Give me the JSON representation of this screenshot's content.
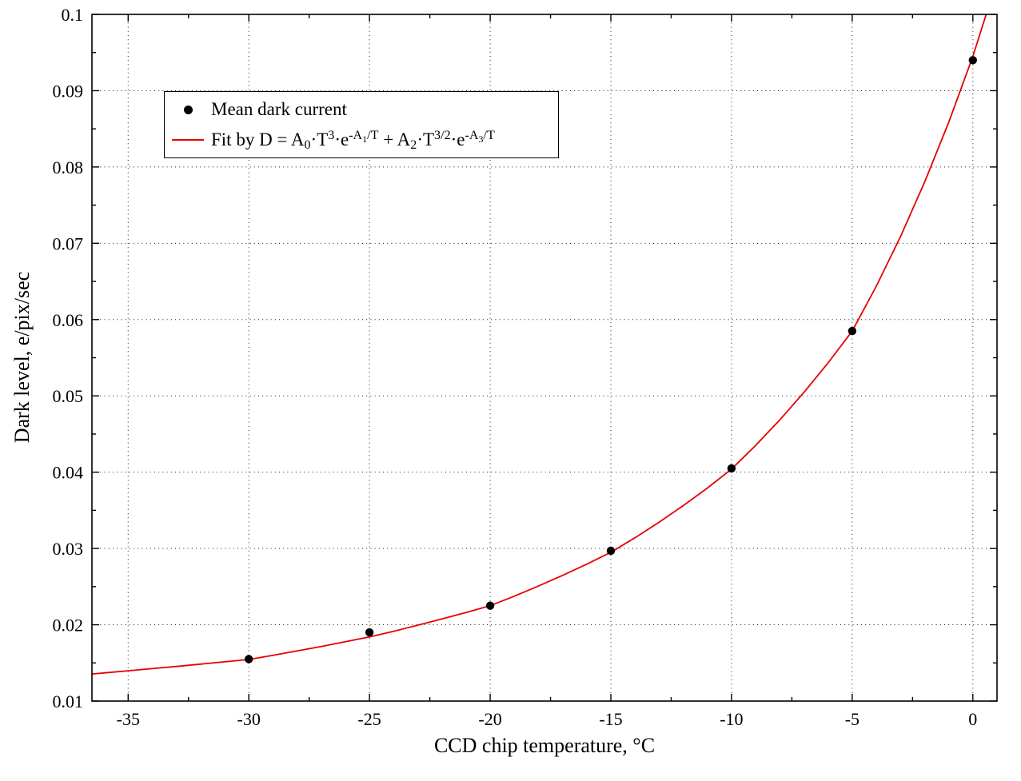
{
  "chart_data": {
    "type": "scatter",
    "title": "",
    "xlabel": "CCD chip temperature, °C",
    "ylabel": "Dark level, e/pix/sec",
    "xlim": [
      -36.5,
      1.0
    ],
    "ylim": [
      0.01,
      0.1
    ],
    "grid": {
      "show": true,
      "style": "dotted"
    },
    "x_ticks": {
      "values": [
        -35,
        -30,
        -25,
        -20,
        -15,
        -10,
        -5,
        0
      ],
      "labels": [
        "-35",
        "-30",
        "-25",
        "-20",
        "-15",
        "-10",
        "-5",
        "0"
      ],
      "minor_values": [
        -32.5,
        -27.5,
        -22.5,
        -17.5,
        -12.5,
        -7.5,
        -2.5
      ]
    },
    "y_ticks": {
      "values": [
        0.01,
        0.02,
        0.03,
        0.04,
        0.05,
        0.06,
        0.07,
        0.08,
        0.09,
        0.1
      ],
      "labels": [
        "0.01",
        "0.02",
        "0.03",
        "0.04",
        "0.05",
        "0.06",
        "0.07",
        "0.08",
        "0.09",
        "0.1"
      ],
      "minor_values": [
        0.015,
        0.025,
        0.035,
        0.045,
        0.055,
        0.065,
        0.075,
        0.085,
        0.095
      ]
    },
    "legend": {
      "position": "upper-left",
      "entries": [
        {
          "label": "Mean dark current",
          "marker": "filled-circle",
          "color": "#000000"
        },
        {
          "label_plain": "Fit by D = A0·T^3·e^(-A1/T) + A2·T^(3/2)·e^(-A3/T)",
          "marker": "line",
          "color": "#e60000",
          "label_tokens": [
            {
              "text": "Fit by D = A",
              "style": "normal"
            },
            {
              "text": "0",
              "style": "sub"
            },
            {
              "text": "·T",
              "style": "normal"
            },
            {
              "text": "3",
              "style": "sup"
            },
            {
              "text": "·e",
              "style": "normal"
            },
            {
              "text": "-A",
              "style": "sup"
            },
            {
              "text": "1",
              "style": "sup-sub"
            },
            {
              "text": "/T",
              "style": "sup"
            },
            {
              "text": " + A",
              "style": "normal"
            },
            {
              "text": "2",
              "style": "sub"
            },
            {
              "text": "·T",
              "style": "normal"
            },
            {
              "text": "3/2",
              "style": "sup"
            },
            {
              "text": "·e",
              "style": "normal"
            },
            {
              "text": "-A",
              "style": "sup"
            },
            {
              "text": "3",
              "style": "sup-sub"
            },
            {
              "text": "/T",
              "style": "sup"
            }
          ]
        }
      ]
    },
    "series": [
      {
        "name": "Mean dark current",
        "type": "scatter",
        "marker": "filled-circle",
        "color": "#000000",
        "x": [
          -30,
          -25,
          -20,
          -15,
          -10,
          -5,
          0
        ],
        "y": [
          0.0155,
          0.019,
          0.0225,
          0.0297,
          0.0405,
          0.0585,
          0.094
        ]
      },
      {
        "name": "Fit curve",
        "type": "line",
        "color": "#e60000",
        "x": [
          -36.5,
          -36,
          -35,
          -34,
          -33,
          -32,
          -31,
          -30,
          -29,
          -28,
          -27,
          -26,
          -25,
          -24,
          -23,
          -22,
          -21,
          -20,
          -19,
          -18,
          -17,
          -16,
          -15,
          -14,
          -13,
          -12,
          -11,
          -10,
          -9,
          -8,
          -7,
          -6,
          -5,
          -4,
          -3,
          -2,
          -1,
          0,
          0.5,
          1
        ],
        "y": [
          0.01355,
          0.01369,
          0.01397,
          0.01425,
          0.01454,
          0.01484,
          0.01514,
          0.01545,
          0.016,
          0.01657,
          0.01716,
          0.01777,
          0.0184,
          0.01915,
          0.01994,
          0.02076,
          0.02161,
          0.0225,
          0.02375,
          0.02508,
          0.02647,
          0.02794,
          0.0295,
          0.03141,
          0.03345,
          0.03562,
          0.03792,
          0.0404,
          0.0435,
          0.04685,
          0.05045,
          0.05432,
          0.0585,
          0.06439,
          0.07087,
          0.07801,
          0.08586,
          0.0945,
          0.09949,
          0.10475
        ]
      }
    ]
  }
}
